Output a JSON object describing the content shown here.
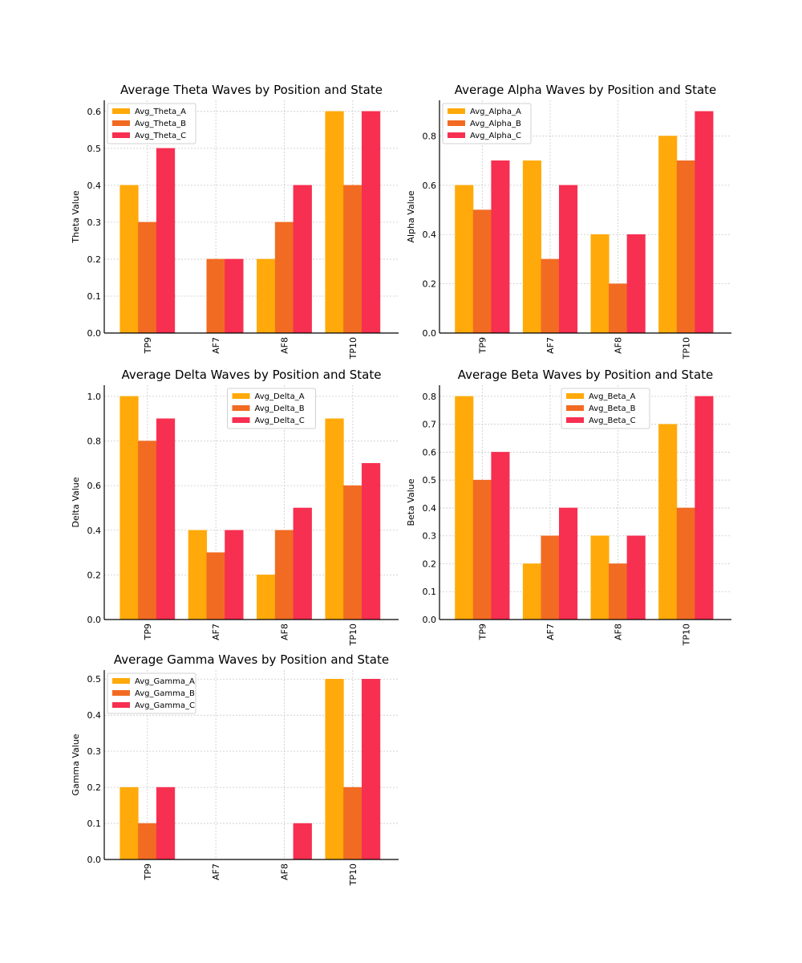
{
  "chart_data": [
    {
      "type": "bar",
      "title": "Average Theta Waves by Position and State",
      "xlabel": "",
      "ylabel": "Theta Value",
      "categories": [
        "TP9",
        "AF7",
        "AF8",
        "TP10"
      ],
      "ylim": [
        0,
        0.63
      ],
      "yticks": [
        0.0,
        0.1,
        0.2,
        0.3,
        0.4,
        0.5,
        0.6
      ],
      "tick_decimals": 1,
      "legend": "top-left",
      "grid": true,
      "series": [
        {
          "name": "Avg_Theta_A",
          "values": [
            0.4,
            0.0,
            0.2,
            0.6
          ]
        },
        {
          "name": "Avg_Theta_B",
          "values": [
            0.3,
            0.2,
            0.3,
            0.4
          ]
        },
        {
          "name": "Avg_Theta_C",
          "values": [
            0.5,
            0.2,
            0.4,
            0.6
          ]
        }
      ]
    },
    {
      "type": "bar",
      "title": "Average Alpha Waves by Position and State",
      "xlabel": "",
      "ylabel": "Alpha Value",
      "categories": [
        "TP9",
        "AF7",
        "AF8",
        "TP10"
      ],
      "ylim": [
        0,
        0.945
      ],
      "yticks": [
        0.0,
        0.2,
        0.4,
        0.6,
        0.8
      ],
      "tick_decimals": 1,
      "legend": "top-left",
      "grid": true,
      "series": [
        {
          "name": "Avg_Alpha_A",
          "values": [
            0.6,
            0.7,
            0.4,
            0.8
          ]
        },
        {
          "name": "Avg_Alpha_B",
          "values": [
            0.5,
            0.3,
            0.2,
            0.7
          ]
        },
        {
          "name": "Avg_Alpha_C",
          "values": [
            0.7,
            0.6,
            0.4,
            0.9
          ]
        }
      ]
    },
    {
      "type": "bar",
      "title": "Average Delta Waves by Position and State",
      "xlabel": "",
      "ylabel": "Delta Value",
      "categories": [
        "TP9",
        "AF7",
        "AF8",
        "TP10"
      ],
      "ylim": [
        0,
        1.05
      ],
      "yticks": [
        0.0,
        0.2,
        0.4,
        0.6,
        0.8,
        1.0
      ],
      "tick_decimals": 1,
      "legend": "upper-center",
      "grid": true,
      "series": [
        {
          "name": "Avg_Delta_A",
          "values": [
            1.0,
            0.4,
            0.2,
            0.9
          ]
        },
        {
          "name": "Avg_Delta_B",
          "values": [
            0.8,
            0.3,
            0.4,
            0.6
          ]
        },
        {
          "name": "Avg_Delta_C",
          "values": [
            0.9,
            0.4,
            0.5,
            0.7
          ]
        }
      ]
    },
    {
      "type": "bar",
      "title": "Average Beta Waves by Position and State",
      "xlabel": "",
      "ylabel": "Beta Value",
      "categories": [
        "TP9",
        "AF7",
        "AF8",
        "TP10"
      ],
      "ylim": [
        0,
        0.84
      ],
      "yticks": [
        0.0,
        0.1,
        0.2,
        0.3,
        0.4,
        0.5,
        0.6,
        0.7,
        0.8
      ],
      "tick_decimals": 1,
      "legend": "upper-center",
      "grid": true,
      "series": [
        {
          "name": "Avg_Beta_A",
          "values": [
            0.8,
            0.2,
            0.3,
            0.7
          ]
        },
        {
          "name": "Avg_Beta_B",
          "values": [
            0.5,
            0.3,
            0.2,
            0.4
          ]
        },
        {
          "name": "Avg_Beta_C",
          "values": [
            0.6,
            0.4,
            0.3,
            0.8
          ]
        }
      ]
    },
    {
      "type": "bar",
      "title": "Average Gamma Waves by Position and State",
      "xlabel": "",
      "ylabel": "Gamma Value",
      "categories": [
        "TP9",
        "AF7",
        "AF8",
        "TP10"
      ],
      "ylim": [
        0,
        0.525
      ],
      "yticks": [
        0.0,
        0.1,
        0.2,
        0.3,
        0.4,
        0.5
      ],
      "tick_decimals": 1,
      "legend": "top-left",
      "grid": true,
      "series": [
        {
          "name": "Avg_Gamma_A",
          "values": [
            0.2,
            0.0,
            0.0,
            0.5
          ]
        },
        {
          "name": "Avg_Gamma_B",
          "values": [
            0.1,
            0.0,
            0.0,
            0.2
          ]
        },
        {
          "name": "Avg_Gamma_C",
          "values": [
            0.2,
            0.0,
            0.1,
            0.5
          ]
        }
      ]
    }
  ],
  "colors": {
    "series_a": "#FFAA0A",
    "series_b": "#F26B22",
    "series_c": "#F72F50"
  }
}
